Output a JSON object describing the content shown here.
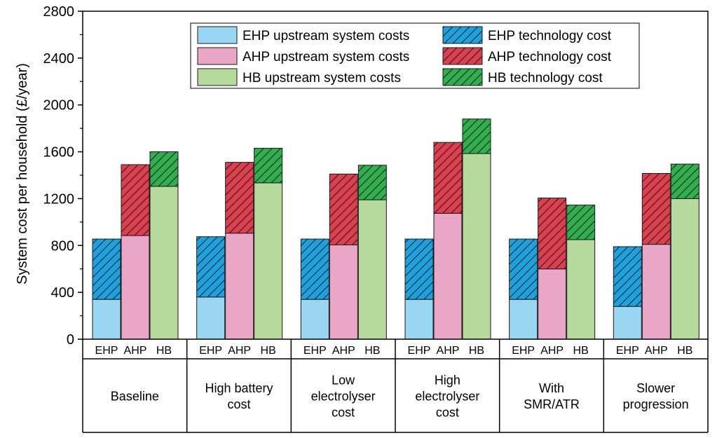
{
  "chart_data": {
    "type": "bar",
    "stacked": true,
    "title": "",
    "xlabel": "",
    "ylabel": "System cost per household (£/year)",
    "ylim": [
      0,
      2800
    ],
    "yticks": [
      0,
      400,
      800,
      1200,
      1600,
      2000,
      2400,
      2800
    ],
    "sub_categories": [
      "EHP",
      "AHP",
      "HB"
    ],
    "groups": [
      {
        "label_lines": [
          "Baseline"
        ],
        "values": {
          "EHP": [
            340,
            515
          ],
          "AHP": [
            885,
            605
          ],
          "HB": [
            1305,
            295
          ]
        }
      },
      {
        "label_lines": [
          "High battery",
          "cost"
        ],
        "values": {
          "EHP": [
            360,
            515
          ],
          "AHP": [
            905,
            605
          ],
          "HB": [
            1335,
            295
          ]
        }
      },
      {
        "label_lines": [
          "Low",
          "electrolyser",
          "cost"
        ],
        "values": {
          "EHP": [
            340,
            515
          ],
          "AHP": [
            805,
            605
          ],
          "HB": [
            1190,
            295
          ]
        }
      },
      {
        "label_lines": [
          "High",
          "electrolyser",
          "cost"
        ],
        "values": {
          "EHP": [
            340,
            515
          ],
          "AHP": [
            1075,
            605
          ],
          "HB": [
            1585,
            295
          ]
        }
      },
      {
        "label_lines": [
          "With",
          "SMR/ATR"
        ],
        "values": {
          "EHP": [
            340,
            515
          ],
          "AHP": [
            600,
            605
          ],
          "HB": [
            850,
            295
          ]
        }
      },
      {
        "label_lines": [
          "Slower",
          "progression"
        ],
        "values": {
          "EHP": [
            280,
            510
          ],
          "AHP": [
            810,
            605
          ],
          "HB": [
            1200,
            295
          ]
        }
      }
    ],
    "legend": [
      {
        "label": "EHP upstream system costs",
        "key": "EHP",
        "part": "upstream"
      },
      {
        "label": "EHP technology cost",
        "key": "EHP",
        "part": "technology"
      },
      {
        "label": "AHP upstream system costs",
        "key": "AHP",
        "part": "upstream"
      },
      {
        "label": "AHP technology cost",
        "key": "AHP",
        "part": "technology"
      },
      {
        "label": "HB upstream system costs",
        "key": "HB",
        "part": "upstream"
      },
      {
        "label": "HB technology cost",
        "key": "HB",
        "part": "technology"
      }
    ],
    "colors": {
      "EHP": {
        "upstream": "#99d6f2",
        "technology": "#1ba3df"
      },
      "AHP": {
        "upstream": "#eaa6c7",
        "technology": "#dd3f4e"
      },
      "HB": {
        "upstream": "#b6d99c",
        "technology": "#2fb04e"
      }
    }
  }
}
